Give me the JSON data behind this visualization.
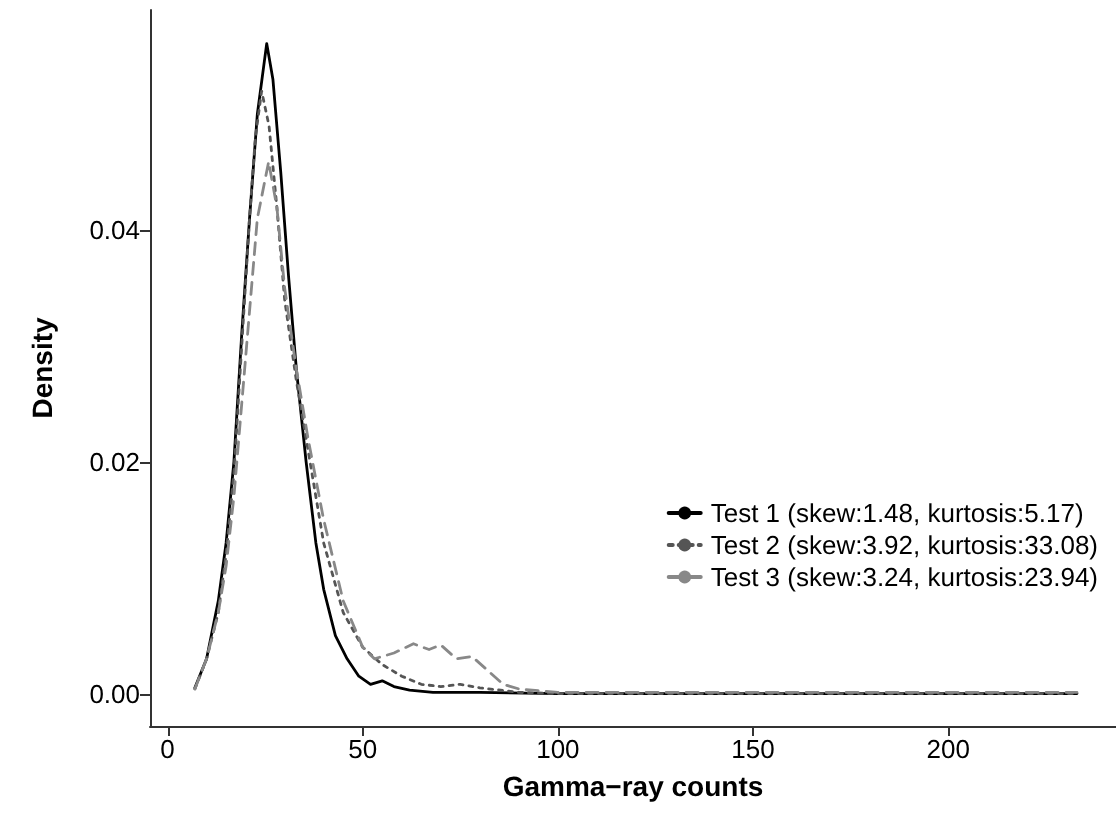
{
  "chart_data": {
    "type": "line",
    "xlabel": "Gamma−ray counts",
    "ylabel": "Density",
    "xlim": [
      -4.5,
      243
    ],
    "ylim": [
      -0.0028,
      0.059
    ],
    "xticks": [
      0,
      50,
      100,
      150,
      200
    ],
    "yticks": [
      {
        "value": 0,
        "label": "0.00"
      },
      {
        "value": 0.02,
        "label": "0.02"
      },
      {
        "value": 0.04,
        "label": "0.04"
      }
    ],
    "grid": false,
    "legend": "bottom right",
    "marker": "none",
    "series": [
      {
        "name": "Test 1 (skew:1.48, kurtosis:5.17)",
        "color": "#000000",
        "line_style": "solid",
        "x": [
          7,
          10,
          13,
          15,
          17,
          19,
          21,
          23,
          25.4,
          27,
          29,
          31,
          33,
          35.5,
          38,
          40,
          43,
          46,
          49,
          52,
          55,
          58,
          62,
          68,
          80,
          100,
          150,
          233
        ],
        "values": [
          0.0005,
          0.003,
          0.008,
          0.013,
          0.02,
          0.031,
          0.041,
          0.05,
          0.0561,
          0.053,
          0.045,
          0.036,
          0.028,
          0.02,
          0.013,
          0.009,
          0.005,
          0.003,
          0.0015,
          0.0008,
          0.0011,
          0.0006,
          0.0003,
          0.0001,
          0.0001,
          0,
          0,
          0
        ]
      },
      {
        "name": "Test 2 (skew:3.92, kurtosis:33.08)",
        "color": "#555555",
        "line_style": "dotted",
        "x": [
          7,
          10,
          13,
          15,
          17,
          19,
          21,
          22.5,
          24.1,
          26,
          28,
          30,
          33,
          35.5,
          40,
          45,
          50,
          55,
          60,
          65,
          70,
          75,
          80,
          90,
          100,
          150,
          233
        ],
        "values": [
          0.0004,
          0.003,
          0.007,
          0.012,
          0.019,
          0.03,
          0.041,
          0.048,
          0.052,
          0.049,
          0.042,
          0.034,
          0.027,
          0.022,
          0.013,
          0.007,
          0.004,
          0.0025,
          0.0015,
          0.0008,
          0.0006,
          0.0008,
          0.0005,
          0.0001,
          0,
          0,
          0
        ]
      },
      {
        "name": "Test 3 (skew:3.24, kurtosis:23.94)",
        "color": "#888888",
        "line_style": "dashed",
        "x": [
          7,
          10,
          13,
          15,
          17,
          19,
          21,
          23,
          25.9,
          28,
          30,
          33,
          36,
          40,
          45,
          50,
          53,
          58,
          63,
          67,
          70,
          74,
          78,
          82,
          86,
          90,
          100,
          150,
          233
        ],
        "values": [
          0.0004,
          0.003,
          0.007,
          0.011,
          0.017,
          0.025,
          0.033,
          0.041,
          0.0459,
          0.042,
          0.035,
          0.028,
          0.022,
          0.015,
          0.008,
          0.004,
          0.003,
          0.0035,
          0.0043,
          0.0038,
          0.0042,
          0.003,
          0.0032,
          0.002,
          0.0008,
          0.0004,
          0.0001,
          0.0001,
          0.0001
        ]
      }
    ]
  }
}
